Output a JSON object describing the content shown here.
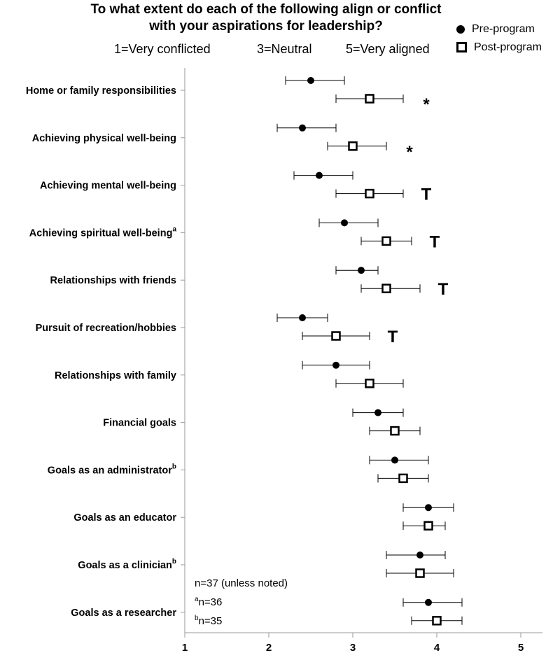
{
  "chart_data": {
    "type": "scatter",
    "title_line1": "To what extent do each of the following align or conflict",
    "title_line2": "with your aspirations for leadership?",
    "scale_labels": [
      "1=Very conflicted",
      "3=Neutral",
      "5=Very aligned"
    ],
    "xlim": [
      1,
      5.25
    ],
    "xticks": [
      1,
      2,
      3,
      4,
      5
    ],
    "legend": [
      {
        "name": "Pre-program",
        "marker": "filled-circle"
      },
      {
        "name": "Post-program",
        "marker": "open-square"
      }
    ],
    "categories": [
      {
        "label": "Home or family responsibilities",
        "sup": "",
        "pre": {
          "mean": 2.5,
          "low": 2.2,
          "high": 2.9
        },
        "post": {
          "mean": 3.2,
          "low": 2.8,
          "high": 3.6
        },
        "sig": "*"
      },
      {
        "label": "Achieving physical well-being",
        "sup": "",
        "pre": {
          "mean": 2.4,
          "low": 2.1,
          "high": 2.8
        },
        "post": {
          "mean": 3.0,
          "low": 2.7,
          "high": 3.4
        },
        "sig": "*"
      },
      {
        "label": "Achieving mental well-being",
        "sup": "",
        "pre": {
          "mean": 2.6,
          "low": 2.3,
          "high": 3.0
        },
        "post": {
          "mean": 3.2,
          "low": 2.8,
          "high": 3.6
        },
        "sig": "T"
      },
      {
        "label": "Achieving spiritual well-being",
        "sup": "a",
        "pre": {
          "mean": 2.9,
          "low": 2.6,
          "high": 3.3
        },
        "post": {
          "mean": 3.4,
          "low": 3.1,
          "high": 3.7
        },
        "sig": "T"
      },
      {
        "label": "Relationships with friends",
        "sup": "",
        "pre": {
          "mean": 3.1,
          "low": 2.8,
          "high": 3.3
        },
        "post": {
          "mean": 3.4,
          "low": 3.1,
          "high": 3.8
        },
        "sig": "T"
      },
      {
        "label": "Pursuit of recreation/hobbies",
        "sup": "",
        "pre": {
          "mean": 2.4,
          "low": 2.1,
          "high": 2.7
        },
        "post": {
          "mean": 2.8,
          "low": 2.4,
          "high": 3.2
        },
        "sig": "T"
      },
      {
        "label": "Relationships with family",
        "sup": "",
        "pre": {
          "mean": 2.8,
          "low": 2.4,
          "high": 3.2
        },
        "post": {
          "mean": 3.2,
          "low": 2.8,
          "high": 3.6
        },
        "sig": ""
      },
      {
        "label": "Financial goals",
        "sup": "",
        "pre": {
          "mean": 3.3,
          "low": 3.0,
          "high": 3.6
        },
        "post": {
          "mean": 3.5,
          "low": 3.2,
          "high": 3.8
        },
        "sig": ""
      },
      {
        "label": "Goals as an administrator",
        "sup": "b",
        "pre": {
          "mean": 3.5,
          "low": 3.2,
          "high": 3.9
        },
        "post": {
          "mean": 3.6,
          "low": 3.3,
          "high": 3.9
        },
        "sig": ""
      },
      {
        "label": "Goals as an educator",
        "sup": "",
        "pre": {
          "mean": 3.9,
          "low": 3.6,
          "high": 4.2
        },
        "post": {
          "mean": 3.9,
          "low": 3.6,
          "high": 4.1
        },
        "sig": ""
      },
      {
        "label": "Goals as a clinician",
        "sup": "b",
        "pre": {
          "mean": 3.8,
          "low": 3.4,
          "high": 4.1
        },
        "post": {
          "mean": 3.8,
          "low": 3.4,
          "high": 4.2
        },
        "sig": ""
      },
      {
        "label": "Goals as a researcher",
        "sup": "",
        "pre": {
          "mean": 3.9,
          "low": 3.6,
          "high": 4.3
        },
        "post": {
          "mean": 4.0,
          "low": 3.7,
          "high": 4.3
        },
        "sig": ""
      }
    ],
    "notes": {
      "line1": "n=37 (unless noted)",
      "line2_sup": "a",
      "line2": "n=36",
      "line3_sup": "b",
      "line3": "n=35"
    }
  }
}
